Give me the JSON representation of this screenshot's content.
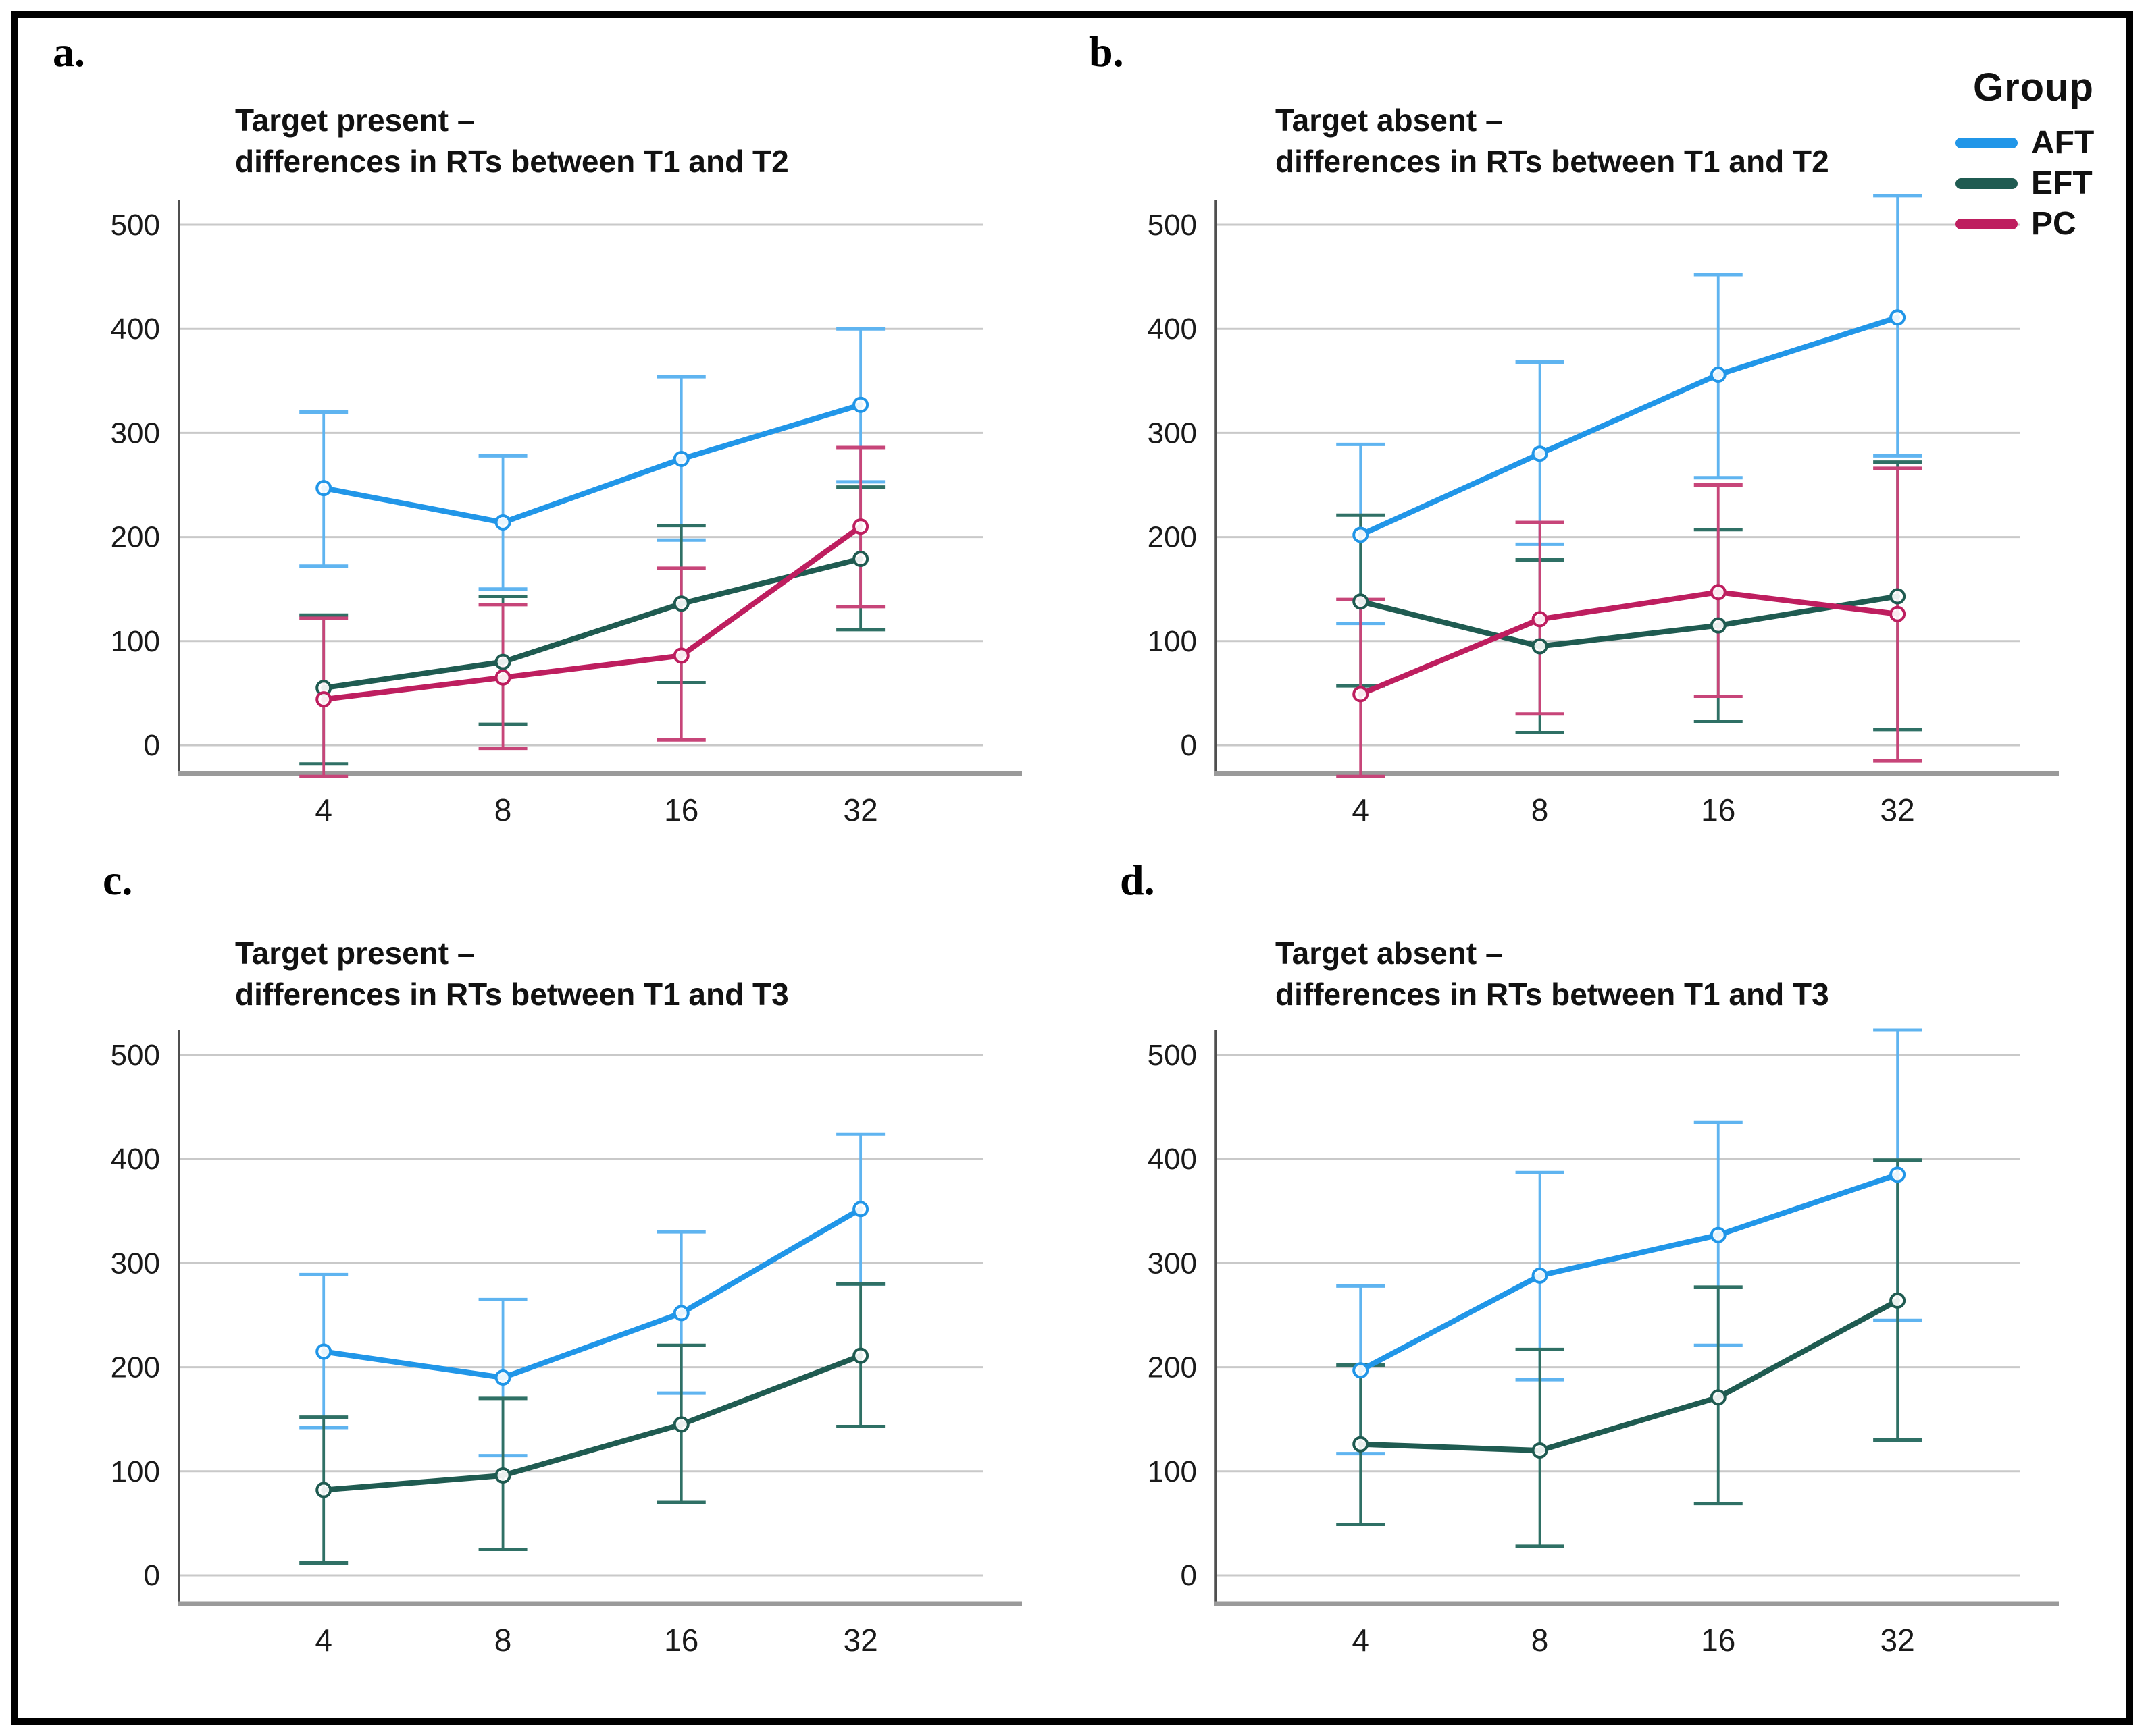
{
  "legend": {
    "title": "Group",
    "items": [
      {
        "label": "AFT",
        "color": "#2196E8"
      },
      {
        "label": "EFT",
        "color": "#1F5B51"
      },
      {
        "label": "PC",
        "color": "#BE1E5F"
      }
    ]
  },
  "colors": {
    "AFT": {
      "line": "#2196E8",
      "error": "#5FB4F0"
    },
    "EFT": {
      "line": "#1F5B51",
      "error": "#2F7065"
    },
    "PC": {
      "line": "#BE1E5F",
      "error": "#C74579"
    },
    "grid": "#c9c9c9",
    "left_spine": "#4f4f4f",
    "bottom_spine": "#9a9a9a",
    "tick_text": "#1a1a1a"
  },
  "axes": {
    "y_ticks": [
      0,
      100,
      200,
      300,
      400,
      500
    ],
    "x_tick_labels": [
      "4",
      "8",
      "16",
      "32"
    ],
    "ylim": [
      -30,
      533
    ],
    "grid": "horizontal gridlines only"
  },
  "chart_data": [
    {
      "id": "a",
      "panel_label": "a.",
      "title_line1": "Target present –",
      "title_line2": "differences in RTs between T1 and T2",
      "type": "line",
      "error_bars": true,
      "x_categories": [
        4,
        8,
        16,
        32
      ],
      "series": [
        {
          "name": "AFT",
          "values": [
            247,
            214,
            275,
            327
          ],
          "err_low": [
            172,
            150,
            197,
            253
          ],
          "err_high": [
            320,
            278,
            354,
            400
          ]
        },
        {
          "name": "EFT",
          "values": [
            55,
            80,
            136,
            179
          ],
          "err_low": [
            -18,
            20,
            60,
            111
          ],
          "err_high": [
            125,
            143,
            211,
            248
          ]
        },
        {
          "name": "PC",
          "values": [
            44,
            65,
            86,
            210
          ],
          "err_low": [
            -30,
            -3,
            5,
            133
          ],
          "err_high": [
            122,
            135,
            170,
            286
          ]
        }
      ]
    },
    {
      "id": "b",
      "panel_label": "b.",
      "title_line1": "Target absent –",
      "title_line2": "differences in RTs between T1 and T2",
      "type": "line",
      "error_bars": true,
      "x_categories": [
        4,
        8,
        16,
        32
      ],
      "series": [
        {
          "name": "AFT",
          "values": [
            202,
            280,
            356,
            411
          ],
          "err_low": [
            117,
            193,
            257,
            278
          ],
          "err_high": [
            289,
            368,
            452,
            528
          ]
        },
        {
          "name": "EFT",
          "values": [
            138,
            95,
            115,
            143
          ],
          "err_low": [
            57,
            12,
            23,
            15
          ],
          "err_high": [
            221,
            178,
            207,
            272
          ]
        },
        {
          "name": "PC",
          "values": [
            49,
            121,
            147,
            126
          ],
          "err_low": [
            -30,
            30,
            47,
            -15
          ],
          "err_high": [
            140,
            214,
            250,
            266
          ]
        }
      ]
    },
    {
      "id": "c",
      "panel_label": "c.",
      "title_line1": "Target present –",
      "title_line2": "differences in RTs between T1 and T3",
      "type": "line",
      "error_bars": true,
      "x_categories": [
        4,
        8,
        16,
        32
      ],
      "series": [
        {
          "name": "AFT",
          "values": [
            215,
            190,
            252,
            352
          ],
          "err_low": [
            142,
            115,
            175,
            280
          ],
          "err_high": [
            289,
            265,
            330,
            424
          ]
        },
        {
          "name": "EFT",
          "values": [
            82,
            96,
            145,
            211
          ],
          "err_low": [
            12,
            25,
            70,
            143
          ],
          "err_high": [
            152,
            170,
            221,
            280
          ]
        }
      ]
    },
    {
      "id": "d",
      "panel_label": "d.",
      "title_line1": "Target absent –",
      "title_line2": "differences in RTs between T1 and T3",
      "type": "line",
      "error_bars": true,
      "x_categories": [
        4,
        8,
        16,
        32
      ],
      "series": [
        {
          "name": "AFT",
          "values": [
            197,
            288,
            327,
            385
          ],
          "err_low": [
            117,
            188,
            221,
            245
          ],
          "err_high": [
            278,
            387,
            435,
            524
          ]
        },
        {
          "name": "EFT",
          "values": [
            126,
            120,
            171,
            264
          ],
          "err_low": [
            49,
            28,
            69,
            130
          ],
          "err_high": [
            202,
            217,
            277,
            399
          ]
        }
      ]
    }
  ]
}
